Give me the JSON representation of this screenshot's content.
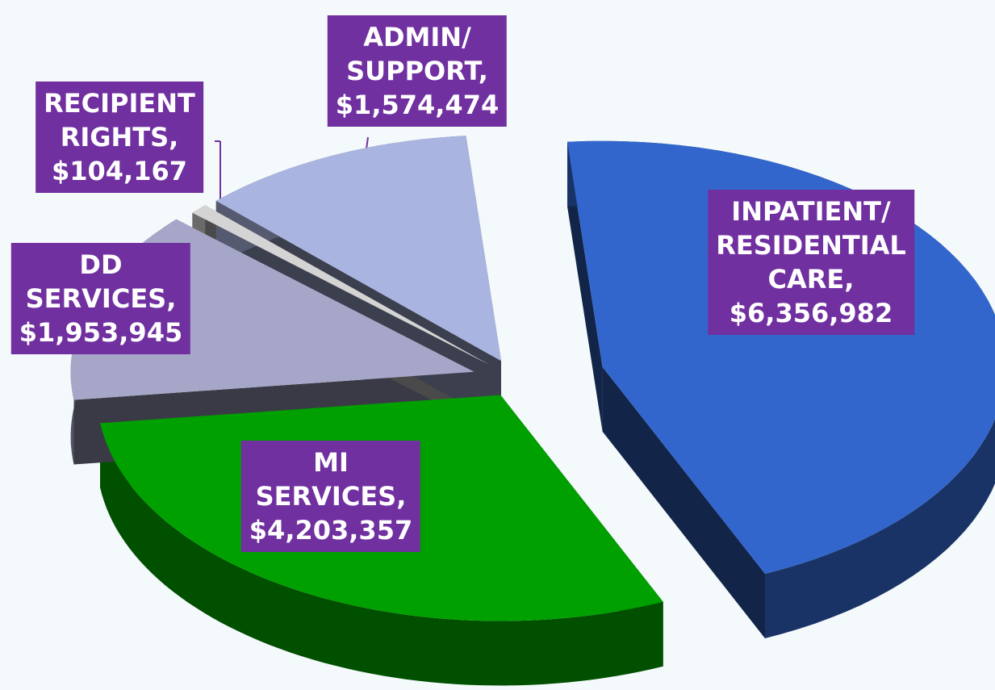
{
  "chart_data": {
    "type": "pie",
    "categories": [
      "INPATIENT/ RESIDENTIAL CARE,",
      "MI SERVICES,",
      "DD SERVICES,",
      "RECIPIENT RIGHTS,",
      "ADMIN/ SUPPORT,"
    ],
    "values": [
      6356982,
      4203357,
      1953945,
      104167,
      1574474
    ],
    "value_labels": [
      "$6,356,982",
      "$4,203,357",
      "$1,953,945",
      "$104,167",
      "$1,574,474"
    ],
    "colors": [
      "#3366cc",
      "#00a000",
      "#a6a6c8",
      "#d4d4d4",
      "#aab4e0"
    ],
    "three_d": true
  }
}
